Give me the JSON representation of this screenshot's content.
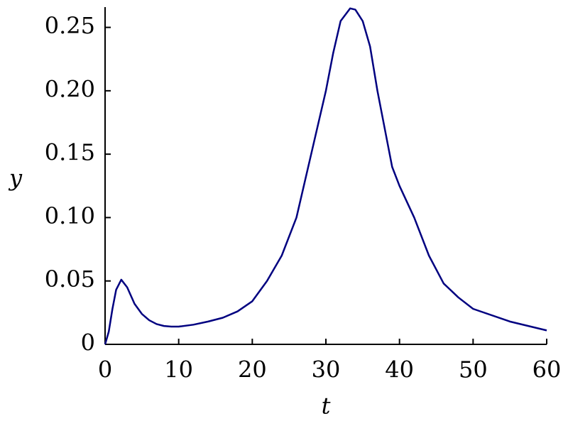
{
  "chart_data": {
    "type": "line",
    "x_label": "t",
    "y_label": "y",
    "x": [
      0,
      0.5,
      1,
      1.5,
      2.2,
      3,
      4,
      5,
      6,
      7,
      8,
      9,
      10,
      12,
      14,
      16,
      18,
      20,
      22,
      24,
      26,
      28,
      30,
      31,
      32,
      33.3,
      34,
      35,
      36,
      37,
      38,
      39,
      40,
      42,
      44,
      46,
      48,
      50,
      55,
      60
    ],
    "series": [
      {
        "color": "#000080",
        "values": [
          0,
          0.01,
          0.028,
          0.043,
          0.051,
          0.045,
          0.032,
          0.024,
          0.019,
          0.016,
          0.0145,
          0.014,
          0.014,
          0.0155,
          0.018,
          0.021,
          0.026,
          0.034,
          0.05,
          0.07,
          0.1,
          0.15,
          0.2,
          0.23,
          0.255,
          0.265,
          0.264,
          0.255,
          0.235,
          0.2,
          0.17,
          0.14,
          0.125,
          0.1,
          0.07,
          0.048,
          0.037,
          0.028,
          0.018,
          0.011
        ]
      }
    ],
    "xlim": [
      0,
      60
    ],
    "xticks": [
      0,
      10,
      20,
      30,
      40,
      50,
      60
    ],
    "ylim": [
      0,
      0.266
    ],
    "yticks": [
      0,
      0.05,
      {
        "value": 0.1,
        "label": "0.10"
      },
      0.15,
      {
        "value": 0.2,
        "label": "0.20"
      },
      0.25
    ]
  }
}
